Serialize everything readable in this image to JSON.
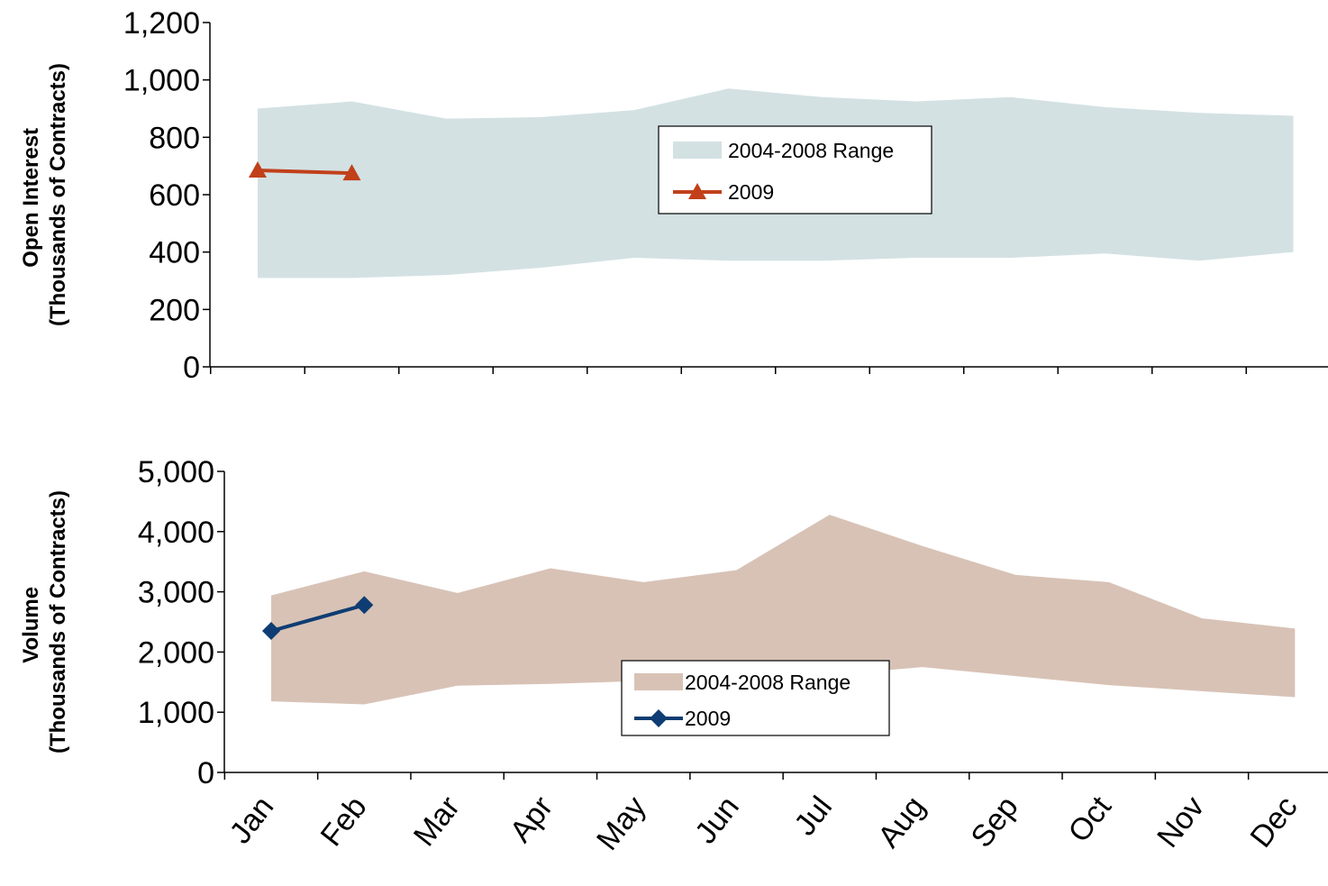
{
  "chart_data": [
    {
      "type": "area",
      "ylabel_line1": "Open Interest",
      "ylabel_line2": "(Thousands of Contracts)",
      "ylim": [
        0,
        1200
      ],
      "yticks": [
        0,
        200,
        400,
        600,
        800,
        1000,
        1200
      ],
      "ytick_labels": [
        "0",
        "200",
        "400",
        "600",
        "800",
        "1,000",
        "1,200"
      ],
      "categories": [
        "Jan",
        "Feb",
        "Mar",
        "Apr",
        "May",
        "Jun",
        "Jul",
        "Aug",
        "Sep",
        "Oct",
        "Nov",
        "Dec"
      ],
      "grid": false,
      "legend_position": "center",
      "range_series": {
        "name": "2004-2008 Range",
        "color": "#d3e1e3",
        "low": [
          310,
          310,
          320,
          345,
          380,
          370,
          370,
          380,
          380,
          395,
          370,
          400
        ],
        "high": [
          900,
          925,
          865,
          870,
          895,
          970,
          940,
          925,
          940,
          905,
          885,
          875
        ]
      },
      "line_series": {
        "name": "2009",
        "color": "#c1401a",
        "marker": "triangle",
        "values": [
          685,
          675
        ]
      }
    },
    {
      "type": "area",
      "ylabel_line1": "Volume",
      "ylabel_line2": "(Thousands of Contracts)",
      "ylim": [
        0,
        5000
      ],
      "yticks": [
        0,
        1000,
        2000,
        3000,
        4000,
        5000
      ],
      "ytick_labels": [
        "0",
        "1,000",
        "2,000",
        "3,000",
        "4,000",
        "5,000"
      ],
      "categories": [
        "Jan",
        "Feb",
        "Mar",
        "Apr",
        "May",
        "Jun",
        "Jul",
        "Aug",
        "Sep",
        "Oct",
        "Nov",
        "Dec"
      ],
      "grid": false,
      "legend_position": "center-bottom",
      "range_series": {
        "name": "2004-2008 Range",
        "color": "#d8c2b6",
        "low": [
          1180,
          1130,
          1440,
          1470,
          1520,
          1560,
          1620,
          1750,
          1600,
          1450,
          1350,
          1250
        ],
        "high": [
          2940,
          3340,
          2980,
          3390,
          3160,
          3360,
          4280,
          3760,
          3280,
          3160,
          2560,
          2390
        ]
      },
      "line_series": {
        "name": "2009",
        "color": "#0f3d73",
        "marker": "diamond",
        "values": [
          2350,
          2780
        ]
      }
    }
  ]
}
